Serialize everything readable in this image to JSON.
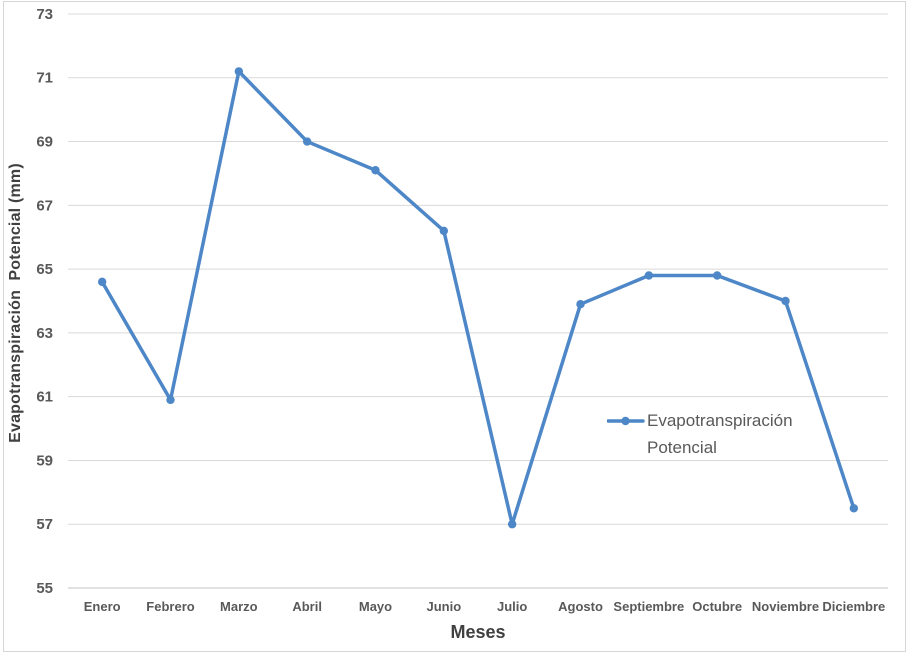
{
  "chart_data": {
    "type": "line",
    "title": "",
    "xlabel": "Meses",
    "ylabel": "Evapotranspiración  Potencial (mm)",
    "categories": [
      "Enero",
      "Febrero",
      "Marzo",
      "Abril",
      "Mayo",
      "Junio",
      "Julio",
      "Agosto",
      "Septiembre",
      "Octubre",
      "Noviembre",
      "Diciembre"
    ],
    "series": [
      {
        "name": "Evapotranspiración Potencial",
        "values": [
          64.6,
          60.9,
          71.2,
          69.0,
          68.1,
          66.2,
          57.0,
          63.9,
          64.8,
          64.8,
          64.0,
          57.5
        ]
      }
    ],
    "ylim": [
      55,
      73
    ],
    "ytick_step": 2,
    "yticks": [
      55,
      57,
      59,
      61,
      63,
      65,
      67,
      69,
      71,
      73
    ],
    "grid": "horizontal",
    "legend_position": "inside-right",
    "marker": "circle",
    "colors": {
      "line": "#4D87C7",
      "gridline": "#D9D9D9",
      "axis_line": "#C6C6C6",
      "chart_border": "#D6D6D6",
      "tick_label": "#595959",
      "axis_title": "#404040",
      "legend_text": "#595959"
    }
  },
  "legend": {
    "label": "Evapotranspiración Potencial"
  }
}
